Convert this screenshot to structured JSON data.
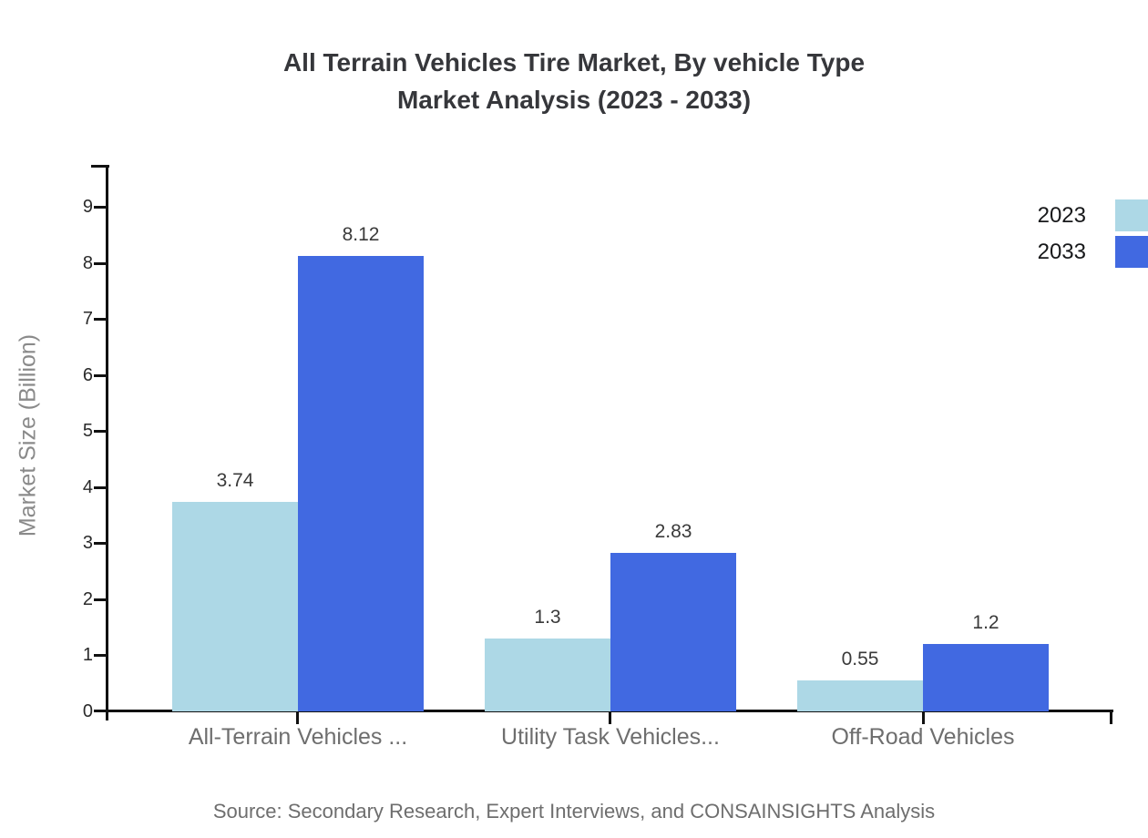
{
  "title": {
    "line1": "All Terrain Vehicles Tire Market, By vehicle Type",
    "line2": "Market Analysis (2023 - 2033)"
  },
  "chart_data": {
    "type": "bar",
    "categories": [
      "All-Terrain Vehicles ...",
      "Utility Task Vehicles...",
      "Off-Road Vehicles"
    ],
    "series": [
      {
        "name": "2023",
        "color": "#ADD8E6",
        "values": [
          3.74,
          1.3,
          0.55
        ]
      },
      {
        "name": "2033",
        "color": "#4169E1",
        "values": [
          8.12,
          2.83,
          1.2
        ]
      }
    ],
    "title": "All Terrain Vehicles Tire Market, By vehicle Type Market Analysis (2023 - 2033)",
    "xlabel": "",
    "ylabel": "Market Size (Billion)",
    "ylim": [
      0,
      9
    ],
    "ytick_step": 1,
    "grid": false,
    "legend_position": "top-right",
    "value_labels_shown": true
  },
  "source": "Source: Secondary Research, Expert Interviews, and CONSAINSIGHTS Analysis"
}
